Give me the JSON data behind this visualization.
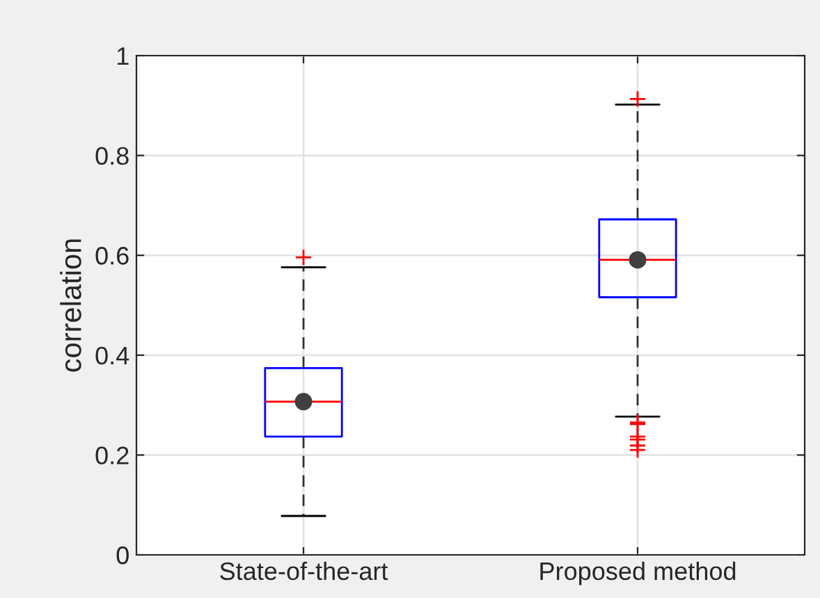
{
  "chart_data": {
    "type": "box",
    "ylabel": "correlation",
    "categories": [
      "State-of-the-art",
      "Proposed method"
    ],
    "boxes": [
      {
        "low": 0.078,
        "q1": 0.237,
        "median": 0.307,
        "q3": 0.374,
        "high": 0.576,
        "mean": 0.307,
        "outliers": [
          0.596
        ]
      },
      {
        "low": 0.277,
        "q1": 0.516,
        "median": 0.591,
        "q3": 0.672,
        "high": 0.902,
        "mean": 0.591,
        "outliers": [
          0.913,
          0.265,
          0.262,
          0.237,
          0.231,
          0.219,
          0.21
        ]
      }
    ],
    "ylim": [
      0,
      1
    ],
    "yticks": [
      0,
      0.2,
      0.4,
      0.6,
      0.8,
      1
    ],
    "grid": true
  }
}
